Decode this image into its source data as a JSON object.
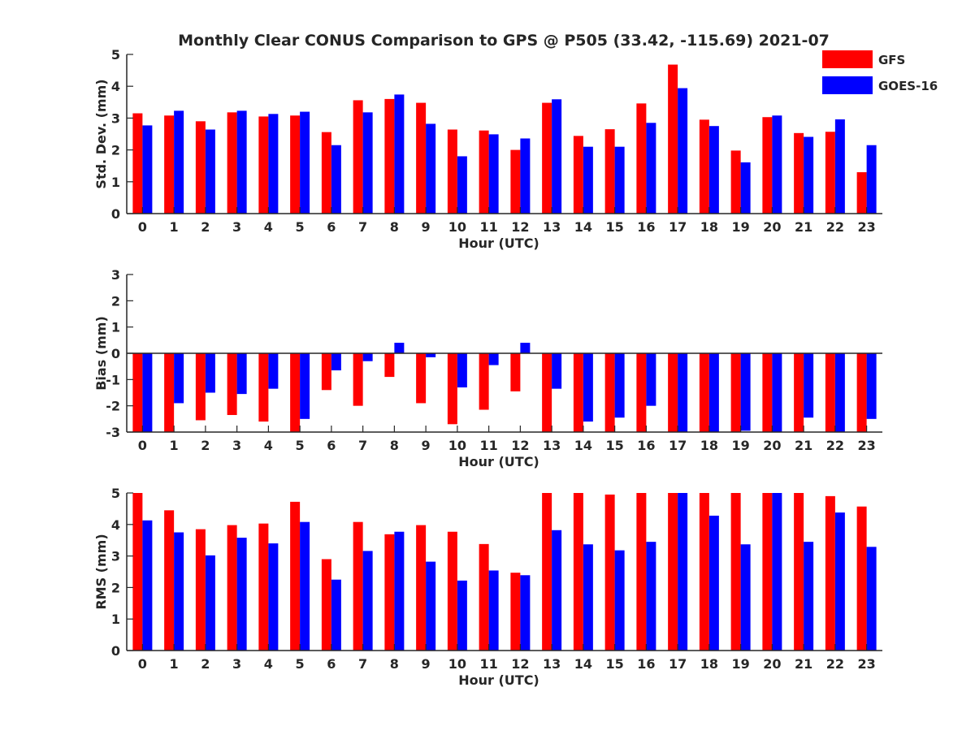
{
  "figure_title": "Monthly Clear CONUS Comparison to GPS @ P505 (33.42, -115.69) 2021-07",
  "colors": {
    "gfs": "#ff0000",
    "goes": "#0000ff",
    "axis": "#262626"
  },
  "chart_data": [
    {
      "type": "bar",
      "title": "Monthly Clear CONUS Comparison to GPS @ P505 (33.42, -115.69) 2021-07",
      "xlabel": "Hour (UTC)",
      "ylabel": "Std. Dev. (mm)",
      "ylim": [
        0,
        5
      ],
      "yticks": [
        0,
        1,
        2,
        3,
        4,
        5
      ],
      "categories": [
        "0",
        "1",
        "2",
        "3",
        "4",
        "5",
        "6",
        "7",
        "8",
        "9",
        "10",
        "11",
        "12",
        "13",
        "14",
        "15",
        "16",
        "17",
        "18",
        "19",
        "20",
        "21",
        "22",
        "23"
      ],
      "legend": "top-right",
      "series": [
        {
          "name": "GFS",
          "values": [
            3.15,
            3.08,
            2.9,
            3.18,
            3.05,
            3.08,
            2.56,
            3.56,
            3.6,
            3.48,
            2.64,
            2.61,
            2.0,
            3.48,
            2.44,
            2.65,
            3.46,
            4.68,
            2.95,
            1.98,
            3.03,
            2.53,
            2.57,
            1.3
          ]
        },
        {
          "name": "GOES-16",
          "values": [
            2.77,
            3.23,
            2.64,
            3.23,
            3.13,
            3.2,
            2.15,
            3.18,
            3.74,
            2.82,
            1.8,
            2.49,
            2.36,
            3.59,
            2.1,
            2.1,
            2.85,
            3.94,
            2.75,
            1.61,
            3.08,
            2.41,
            2.96,
            2.15
          ]
        }
      ]
    },
    {
      "type": "bar",
      "xlabel": "Hour (UTC)",
      "ylabel": "Bias (mm)",
      "ylim": [
        -3,
        3
      ],
      "yticks": [
        -3,
        -2,
        -1,
        0,
        1,
        2,
        3
      ],
      "categories": [
        "0",
        "1",
        "2",
        "3",
        "4",
        "5",
        "6",
        "7",
        "8",
        "9",
        "10",
        "11",
        "12",
        "13",
        "14",
        "15",
        "16",
        "17",
        "18",
        "19",
        "20",
        "21",
        "22",
        "23"
      ],
      "series": [
        {
          "name": "GFS",
          "values": [
            -3.0,
            -3.0,
            -2.55,
            -2.35,
            -2.6,
            -3.0,
            -1.4,
            -2.0,
            -0.9,
            -1.9,
            -2.7,
            -2.15,
            -1.45,
            -3.0,
            -3.0,
            -3.0,
            -3.0,
            -3.0,
            -3.0,
            -3.0,
            -3.0,
            -3.0,
            -3.0,
            -3.0
          ]
        },
        {
          "name": "GOES-16",
          "values": [
            -3.0,
            -1.9,
            -1.5,
            -1.55,
            -1.35,
            -2.5,
            -0.65,
            -0.3,
            0.4,
            -0.15,
            -1.3,
            -0.45,
            0.4,
            -1.35,
            -2.6,
            -2.45,
            -2.0,
            -3.0,
            -3.0,
            -2.95,
            -3.0,
            -2.45,
            -3.0,
            -2.5
          ]
        }
      ]
    },
    {
      "type": "bar",
      "xlabel": "Hour (UTC)",
      "ylabel": "RMS (mm)",
      "ylim": [
        0,
        5
      ],
      "yticks": [
        0,
        1,
        2,
        3,
        4,
        5
      ],
      "categories": [
        "0",
        "1",
        "2",
        "3",
        "4",
        "5",
        "6",
        "7",
        "8",
        "9",
        "10",
        "11",
        "12",
        "13",
        "14",
        "15",
        "16",
        "17",
        "18",
        "19",
        "20",
        "21",
        "22",
        "23"
      ],
      "series": [
        {
          "name": "GFS",
          "values": [
            5.0,
            4.45,
            3.85,
            3.98,
            4.03,
            4.72,
            2.9,
            4.08,
            3.69,
            3.98,
            3.77,
            3.38,
            2.47,
            5.0,
            5.0,
            4.95,
            5.0,
            5.0,
            5.0,
            5.0,
            5.0,
            5.0,
            4.9,
            4.57
          ]
        },
        {
          "name": "GOES-16",
          "values": [
            4.13,
            3.75,
            3.02,
            3.58,
            3.4,
            4.08,
            2.25,
            3.16,
            3.77,
            2.82,
            2.22,
            2.54,
            2.39,
            3.82,
            3.37,
            3.18,
            3.45,
            5.0,
            4.28,
            3.37,
            5.0,
            3.45,
            4.38,
            3.29
          ]
        }
      ]
    }
  ]
}
